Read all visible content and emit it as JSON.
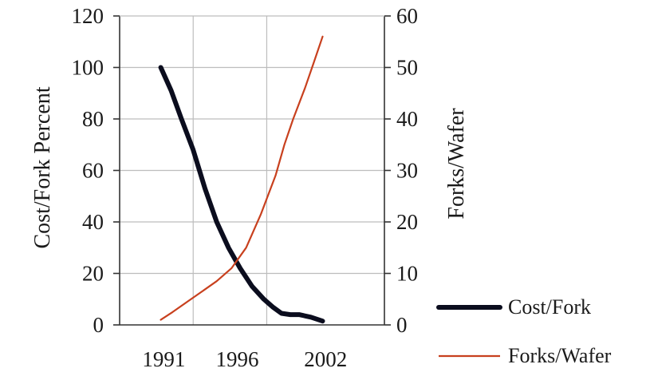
{
  "chart_data": {
    "type": "line",
    "title": "",
    "ylabel": "Cost/Fork Percent",
    "y2label": "Forks/Wafer",
    "xlabel": "",
    "xlim": [
      1988,
      2006
    ],
    "ylim": [
      0,
      120
    ],
    "y2lim": [
      0,
      60
    ],
    "x_ticks": [
      1991,
      1996,
      2002
    ],
    "x_tick_labels": [
      "1991",
      "1996",
      "2002"
    ],
    "x_gridlines": [
      1993,
      1998
    ],
    "y_ticks": [
      0,
      20,
      40,
      60,
      80,
      100,
      120
    ],
    "y_tick_labels": [
      "0",
      "20",
      "40",
      "60",
      "80",
      "100",
      "120"
    ],
    "y2_ticks": [
      0,
      10,
      20,
      30,
      40,
      50,
      60
    ],
    "y2_tick_labels": [
      "0",
      "10",
      "20",
      "30",
      "40",
      "50",
      "60"
    ],
    "grid": true,
    "legend_position": "bottom-right",
    "series": [
      {
        "name": "Cost/Fork",
        "axis": "left",
        "color": "#0b0d1e",
        "x": [
          1990.8,
          1991.5,
          1992.2,
          1993.0,
          1993.8,
          1994.6,
          1995.4,
          1996.2,
          1997.0,
          1997.8,
          1998.4,
          1999.0,
          1999.6,
          2000.2,
          2001.0,
          2001.8
        ],
        "values": [
          100,
          91,
          80,
          68,
          53,
          40,
          30,
          22,
          15,
          10,
          7,
          4.5,
          4,
          4,
          3,
          1.5
        ]
      },
      {
        "name": "Forks/Wafer",
        "axis": "right",
        "color": "#c8401e",
        "x": [
          1990.8,
          1991.6,
          1992.6,
          1993.6,
          1994.6,
          1995.6,
          1996.6,
          1997.6,
          1998.6,
          1999.2,
          1999.8,
          2000.6,
          2001.2,
          2001.8
        ],
        "values": [
          1,
          2.5,
          4.5,
          6.5,
          8.5,
          11,
          15,
          21.5,
          29,
          35,
          40,
          46,
          51,
          56
        ]
      }
    ]
  }
}
